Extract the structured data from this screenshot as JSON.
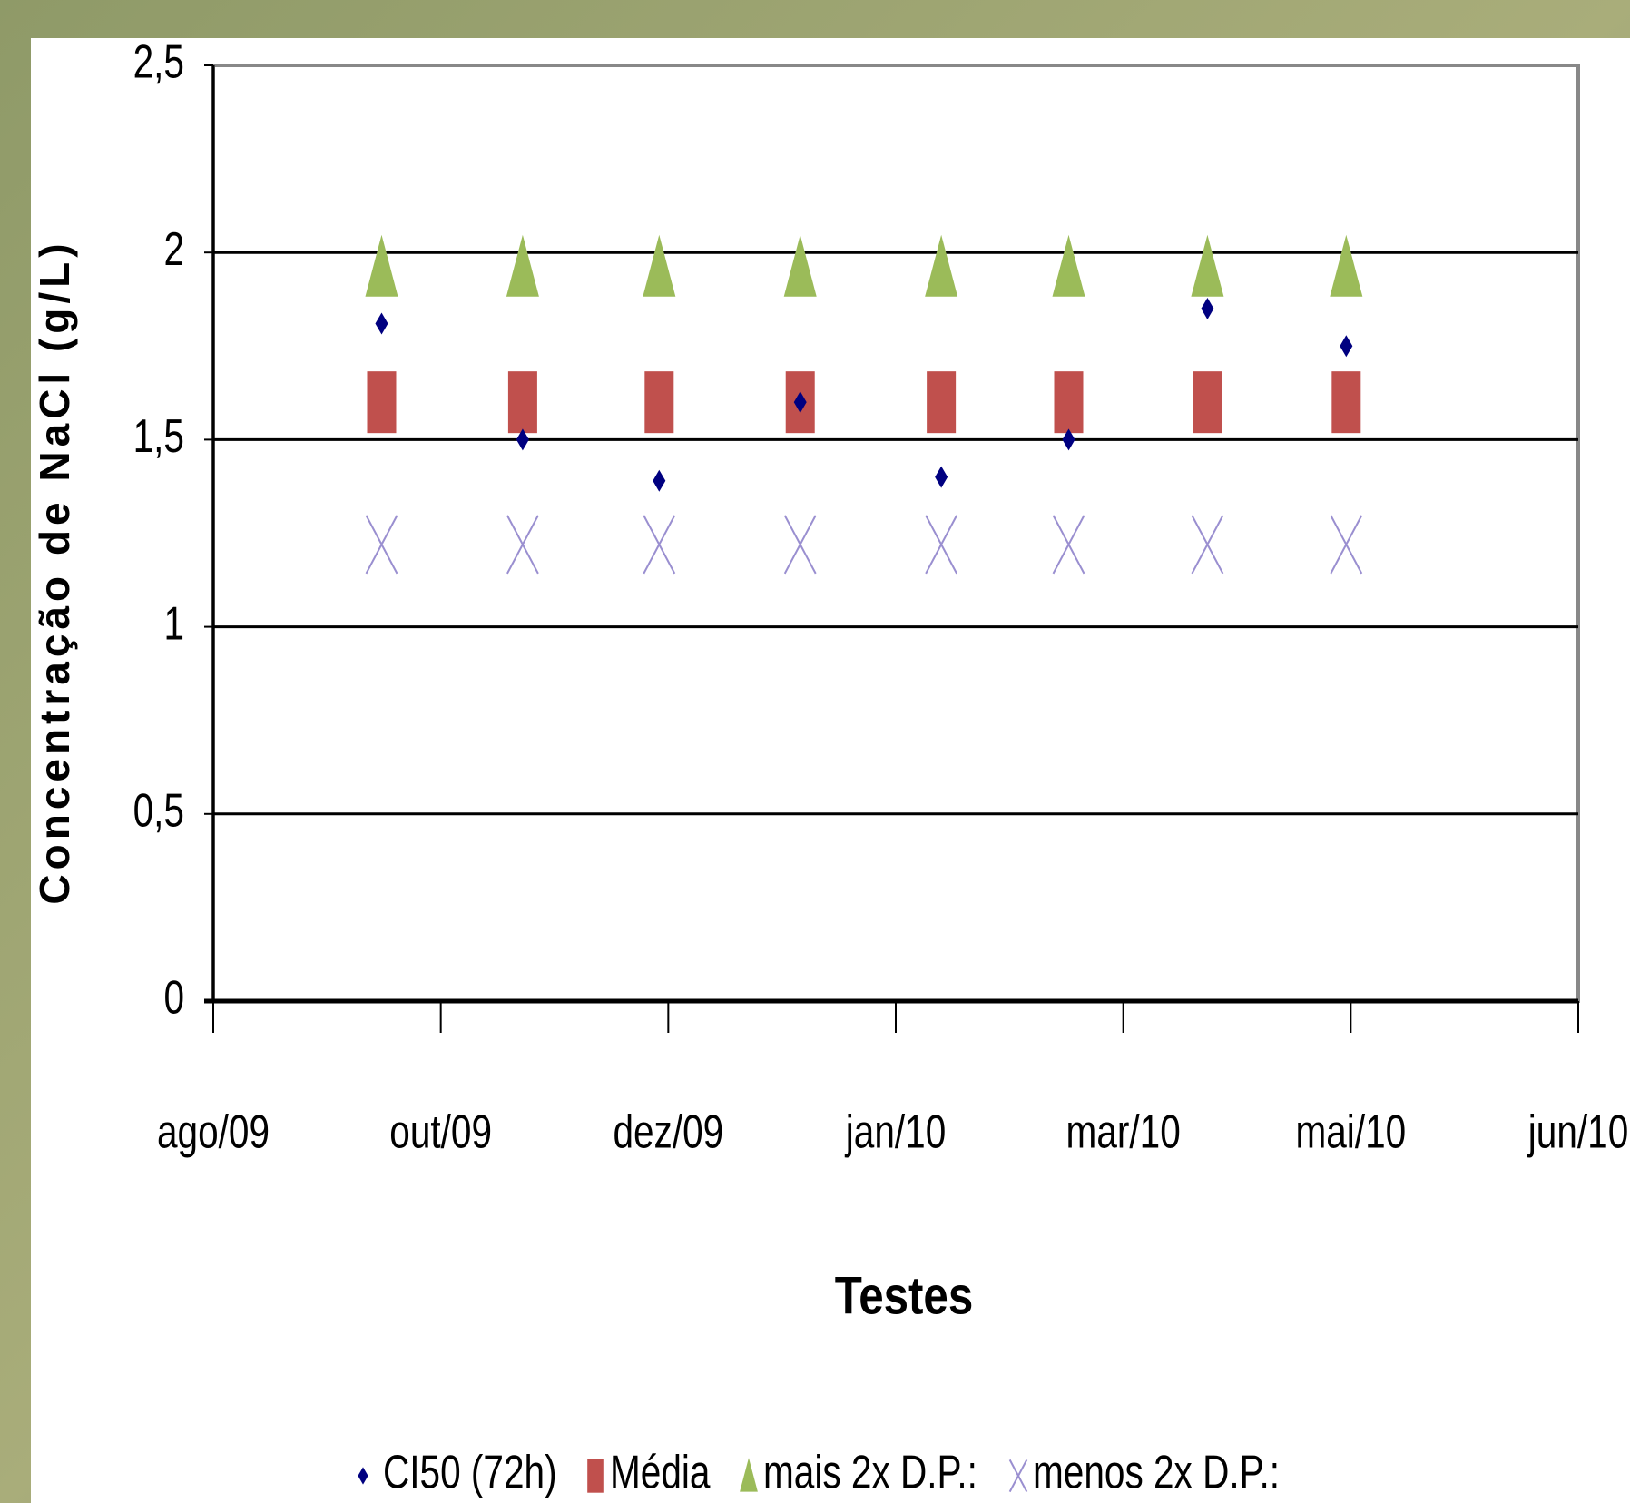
{
  "chart_data": {
    "type": "scatter",
    "x_label": "Testes",
    "y_label": "Concentração de NaCl (g/L)",
    "x": [
      0.74,
      1.36,
      1.96,
      2.58,
      3.2,
      3.76,
      4.37,
      4.98
    ],
    "xlim": [
      0,
      6
    ],
    "xticks": [
      {
        "value": 0,
        "label": "ago/09"
      },
      {
        "value": 1,
        "label": "out/09"
      },
      {
        "value": 2,
        "label": "dez/09"
      },
      {
        "value": 3,
        "label": "jan/10"
      },
      {
        "value": 4,
        "label": "mar/10"
      },
      {
        "value": 5,
        "label": "mai/10"
      },
      {
        "value": 6,
        "label": "jun/10"
      }
    ],
    "ylim": [
      0,
      2.5
    ],
    "yticks": [
      {
        "value": 0,
        "label": "0"
      },
      {
        "value": 0.5,
        "label": "0,5"
      },
      {
        "value": 1,
        "label": "1"
      },
      {
        "value": 1.5,
        "label": "1,5"
      },
      {
        "value": 2,
        "label": "2"
      },
      {
        "value": 2.5,
        "label": "2,5"
      }
    ],
    "grid": true,
    "legend": "bottom",
    "series": [
      {
        "name": "CI50 (72h)",
        "color": "#000080",
        "marker": "diamond",
        "values": [
          1.81,
          1.5,
          1.39,
          1.6,
          1.4,
          1.5,
          1.85,
          1.75
        ]
      },
      {
        "name": "Média",
        "color": "#c0504d",
        "marker": "square",
        "values": [
          1.6,
          1.6,
          1.6,
          1.6,
          1.6,
          1.6,
          1.6,
          1.6
        ]
      },
      {
        "name": "mais 2x D.P.:",
        "color": "#9bbb59",
        "marker": "triangle",
        "values": [
          1.96,
          1.96,
          1.96,
          1.96,
          1.96,
          1.96,
          1.96,
          1.96
        ]
      },
      {
        "name": "menos 2x D.P.:",
        "color": "#9a8fd0",
        "marker": "x",
        "values": [
          1.22,
          1.22,
          1.22,
          1.22,
          1.22,
          1.22,
          1.22,
          1.22
        ]
      }
    ]
  }
}
